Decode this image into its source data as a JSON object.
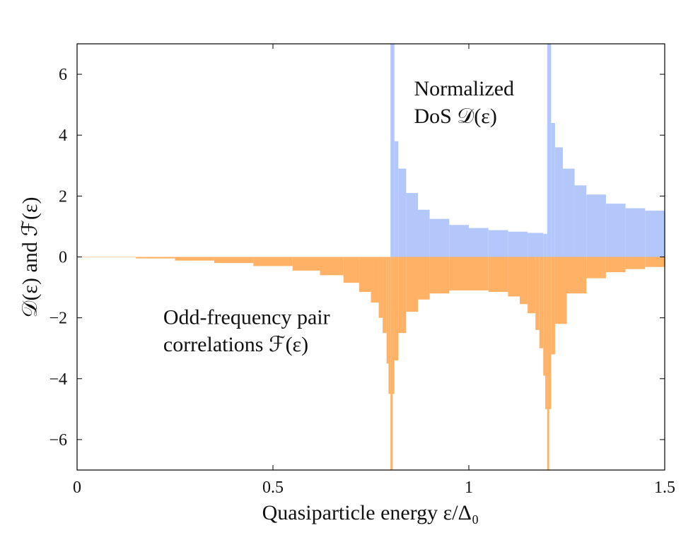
{
  "chart_data": {
    "type": "bar",
    "title": "",
    "xlabel": "Quasiparticle energy ε/Δ₀",
    "ylabel": "𝒟(ε) and ℱ(ε)",
    "xlim": [
      0,
      1.5
    ],
    "ylim": [
      -7,
      7
    ],
    "x_ticks": [
      0,
      0.5,
      1,
      1.5
    ],
    "x_tick_labels": [
      "0",
      "0.5",
      "1",
      "1.5"
    ],
    "y_ticks": [
      -6,
      -4,
      -2,
      0,
      2,
      4,
      6
    ],
    "y_tick_labels": [
      "−6",
      "−4",
      "−2",
      "0",
      "2",
      "4",
      "6"
    ],
    "grid": false,
    "gap_edges": [
      0.8,
      1.2
    ],
    "series": [
      {
        "name": "Normalized DoS 𝒟(ε)",
        "color": "#b3c7fb",
        "x": [
          0.8,
          0.81,
          0.82,
          0.84,
          0.87,
          0.9,
          0.95,
          1.0,
          1.05,
          1.1,
          1.15,
          1.19,
          1.2,
          1.21,
          1.22,
          1.24,
          1.27,
          1.3,
          1.35,
          1.4,
          1.45,
          1.5
        ],
        "values": [
          7.0,
          3.8,
          2.9,
          2.1,
          1.55,
          1.25,
          1.05,
          0.95,
          0.88,
          0.83,
          0.79,
          0.76,
          7.0,
          4.4,
          3.6,
          2.9,
          2.35,
          2.05,
          1.75,
          1.6,
          1.52,
          1.45
        ]
      },
      {
        "name": "Odd-frequency pair correlations ℱ(ε)",
        "color": "#ffb266",
        "x": [
          0.0,
          0.15,
          0.25,
          0.35,
          0.45,
          0.55,
          0.62,
          0.68,
          0.72,
          0.75,
          0.77,
          0.78,
          0.79,
          0.795,
          0.8,
          0.805,
          0.81,
          0.82,
          0.84,
          0.87,
          0.9,
          0.95,
          1.0,
          1.05,
          1.1,
          1.13,
          1.15,
          1.17,
          1.18,
          1.19,
          1.195,
          1.2,
          1.205,
          1.21,
          1.22,
          1.25,
          1.3,
          1.35,
          1.4,
          1.45,
          1.5
        ],
        "values": [
          0.0,
          -0.05,
          -0.12,
          -0.2,
          -0.3,
          -0.45,
          -0.6,
          -0.85,
          -1.15,
          -1.5,
          -2.0,
          -2.5,
          -3.5,
          -4.5,
          -7.0,
          -4.5,
          -3.4,
          -2.5,
          -1.8,
          -1.4,
          -1.2,
          -1.1,
          -1.1,
          -1.15,
          -1.3,
          -1.55,
          -1.85,
          -2.4,
          -3.0,
          -3.9,
          -5.0,
          -7.0,
          -5.0,
          -3.2,
          -2.2,
          -1.2,
          -0.7,
          -0.5,
          -0.4,
          -0.33,
          -0.28
        ]
      }
    ],
    "annotations": [
      {
        "text": [
          "Normalized",
          "DoS 𝒟(ε)"
        ],
        "x": 0.86,
        "y": [
          5.3,
          4.4
        ]
      },
      {
        "text": [
          "Odd-frequency pair",
          "correlations ℱ(ε)"
        ],
        "x": 0.22,
        "y": [
          -2.2,
          -3.1
        ]
      }
    ]
  }
}
